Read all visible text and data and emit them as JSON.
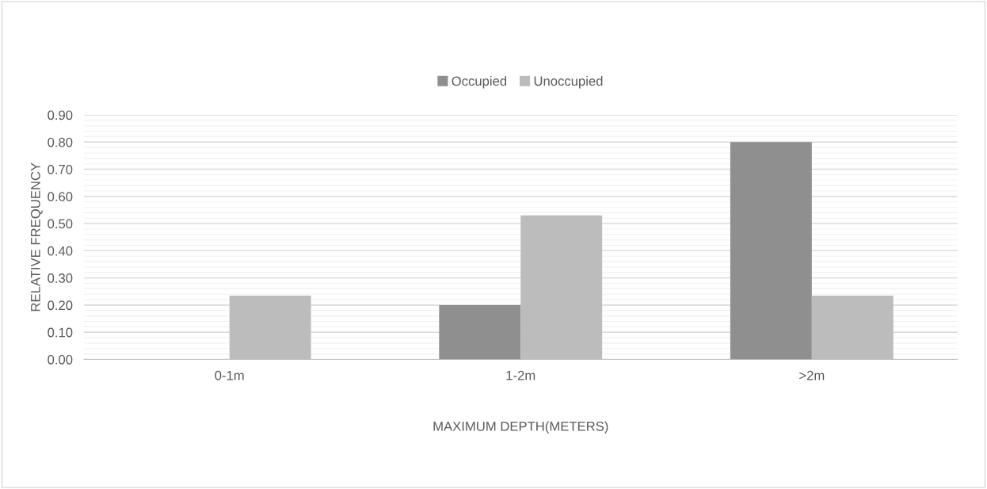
{
  "chart_data": {
    "type": "bar",
    "xlabel": "MAXIMUM DEPTH(METERS)",
    "ylabel": "RELATIVE FREQUENCY",
    "categories": [
      "0-1m",
      "1-2m",
      ">2m"
    ],
    "series": [
      {
        "name": "Occupied",
        "color": "#8f8f8f",
        "values": [
          0,
          0.2,
          0.8
        ]
      },
      {
        "name": "Unoccupied",
        "color": "#bcbcbc",
        "values": [
          0.235,
          0.53,
          0.235
        ]
      }
    ],
    "ylim": [
      0,
      0.9
    ],
    "yticks": [
      {
        "value": 0,
        "label": "0.00"
      },
      {
        "value": 0.1,
        "label": "0.10"
      },
      {
        "value": 0.2,
        "label": "0.20"
      },
      {
        "value": 0.3,
        "label": "0.30"
      },
      {
        "value": 0.4,
        "label": "0.40"
      },
      {
        "value": 0.5,
        "label": "0.50"
      },
      {
        "value": 0.6,
        "label": "0.60"
      },
      {
        "value": 0.7,
        "label": "0.70"
      },
      {
        "value": 0.8,
        "label": "0.80"
      },
      {
        "value": 0.9,
        "label": "0.90"
      }
    ],
    "grid": "y",
    "legend": "top"
  }
}
